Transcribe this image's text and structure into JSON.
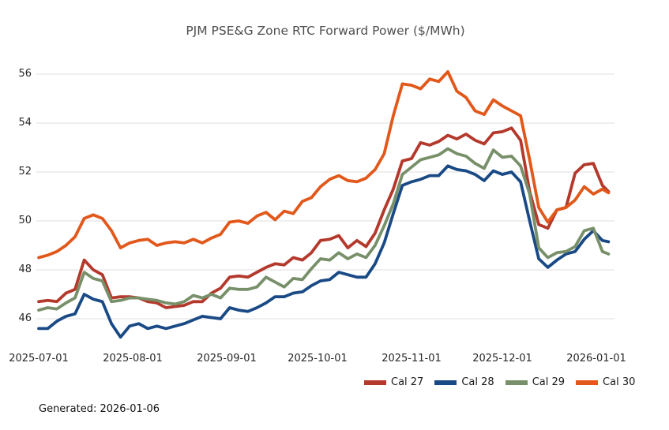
{
  "footer": {
    "generated_label": "Generated: 2026-01-06"
  },
  "chart_data": {
    "type": "line",
    "title": "PJM PSE&G Zone RTC Forward Power ($/MWh)",
    "xlabel": "",
    "ylabel": "",
    "grid": "horizontal-only",
    "gridline_color": "#e5e5e5",
    "background": "#ffffff",
    "legend_position": "bottom-right",
    "y_ticks": [
      46,
      48,
      50,
      52,
      54,
      56
    ],
    "y_tick_labels": [
      "46",
      "48",
      "50",
      "52",
      "54",
      "56"
    ],
    "ylim": [
      44.8,
      56.8
    ],
    "x_tick_labels": [
      "2025-07-01",
      "2025-08-01",
      "2025-09-01",
      "2025-10-01",
      "2025-11-01",
      "2025-12-01",
      "2026-01-01"
    ],
    "x": [
      "2025-07-01",
      "2025-07-04",
      "2025-07-07",
      "2025-07-10",
      "2025-07-13",
      "2025-07-16",
      "2025-07-19",
      "2025-07-22",
      "2025-07-25",
      "2025-07-28",
      "2025-07-31",
      "2025-08-03",
      "2025-08-06",
      "2025-08-09",
      "2025-08-12",
      "2025-08-15",
      "2025-08-18",
      "2025-08-21",
      "2025-08-24",
      "2025-08-27",
      "2025-08-30",
      "2025-09-02",
      "2025-09-05",
      "2025-09-08",
      "2025-09-11",
      "2025-09-14",
      "2025-09-17",
      "2025-09-20",
      "2025-09-23",
      "2025-09-26",
      "2025-09-29",
      "2025-10-02",
      "2025-10-05",
      "2025-10-08",
      "2025-10-11",
      "2025-10-14",
      "2025-10-17",
      "2025-10-20",
      "2025-10-23",
      "2025-10-26",
      "2025-10-29",
      "2025-11-01",
      "2025-11-04",
      "2025-11-07",
      "2025-11-10",
      "2025-11-13",
      "2025-11-16",
      "2025-11-19",
      "2025-11-22",
      "2025-11-25",
      "2025-11-28",
      "2025-12-01",
      "2025-12-04",
      "2025-12-07",
      "2025-12-10",
      "2025-12-13",
      "2025-12-16",
      "2025-12-19",
      "2025-12-22",
      "2025-12-25",
      "2025-12-28",
      "2025-12-31",
      "2026-01-03",
      "2026-01-05"
    ],
    "series": [
      {
        "name": "Cal 27",
        "color": "#b4392c",
        "values": [
          46.7,
          46.75,
          46.7,
          47.05,
          47.2,
          48.4,
          48.0,
          47.8,
          46.85,
          46.9,
          46.9,
          46.85,
          46.7,
          46.65,
          46.45,
          46.5,
          46.55,
          46.7,
          46.7,
          47.05,
          47.25,
          47.7,
          47.75,
          47.7,
          47.9,
          48.1,
          48.25,
          48.2,
          48.5,
          48.4,
          48.7,
          49.2,
          49.25,
          49.4,
          48.9,
          49.2,
          48.95,
          49.5,
          50.45,
          51.3,
          52.45,
          52.55,
          53.2,
          53.1,
          53.25,
          53.5,
          53.35,
          53.55,
          53.3,
          53.15,
          53.6,
          53.65,
          53.8,
          53.3,
          51.2,
          49.85,
          49.7,
          50.45,
          50.55,
          51.95,
          52.3,
          52.35,
          51.45,
          51.2
        ]
      },
      {
        "name": "Cal 28",
        "color": "#1a4a86",
        "values": [
          45.6,
          45.6,
          45.9,
          46.1,
          46.2,
          47.0,
          46.8,
          46.7,
          45.8,
          45.25,
          45.7,
          45.8,
          45.6,
          45.7,
          45.6,
          45.7,
          45.8,
          45.95,
          46.1,
          46.05,
          46.0,
          46.45,
          46.35,
          46.3,
          46.45,
          46.65,
          46.9,
          46.9,
          47.05,
          47.1,
          47.35,
          47.55,
          47.6,
          47.9,
          47.8,
          47.7,
          47.7,
          48.25,
          49.1,
          50.3,
          51.45,
          51.6,
          51.7,
          51.85,
          51.85,
          52.25,
          52.1,
          52.05,
          51.9,
          51.65,
          52.05,
          51.9,
          52.0,
          51.6,
          50.0,
          48.45,
          48.1,
          48.4,
          48.65,
          48.75,
          49.25,
          49.6,
          49.2,
          49.15
        ]
      },
      {
        "name": "Cal 29",
        "color": "#78906a",
        "values": [
          46.35,
          46.45,
          46.4,
          46.65,
          46.85,
          47.9,
          47.65,
          47.55,
          46.7,
          46.75,
          46.85,
          46.85,
          46.8,
          46.75,
          46.65,
          46.6,
          46.7,
          46.95,
          46.85,
          47.0,
          46.85,
          47.25,
          47.2,
          47.2,
          47.3,
          47.7,
          47.5,
          47.3,
          47.65,
          47.6,
          48.05,
          48.45,
          48.4,
          48.7,
          48.45,
          48.65,
          48.5,
          49.0,
          49.8,
          50.7,
          51.9,
          52.2,
          52.5,
          52.6,
          52.7,
          52.95,
          52.75,
          52.65,
          52.35,
          52.15,
          52.9,
          52.6,
          52.65,
          52.25,
          51.1,
          48.9,
          48.5,
          48.7,
          48.75,
          48.95,
          49.6,
          49.7,
          48.75,
          48.65
        ]
      },
      {
        "name": "Cal 30",
        "color": "#e2581b",
        "values": [
          48.5,
          48.6,
          48.75,
          49.0,
          49.35,
          50.1,
          50.25,
          50.1,
          49.6,
          48.9,
          49.1,
          49.2,
          49.25,
          49.0,
          49.1,
          49.15,
          49.1,
          49.25,
          49.1,
          49.3,
          49.45,
          49.95,
          50.0,
          49.9,
          50.2,
          50.35,
          50.05,
          50.4,
          50.3,
          50.8,
          50.95,
          51.4,
          51.7,
          51.85,
          51.65,
          51.6,
          51.75,
          52.1,
          52.75,
          54.3,
          55.6,
          55.55,
          55.4,
          55.8,
          55.7,
          56.1,
          55.3,
          55.05,
          54.5,
          54.35,
          54.95,
          54.7,
          54.5,
          54.3,
          52.5,
          50.55,
          49.95,
          50.45,
          50.55,
          50.85,
          51.4,
          51.1,
          51.3,
          51.15
        ]
      }
    ]
  }
}
